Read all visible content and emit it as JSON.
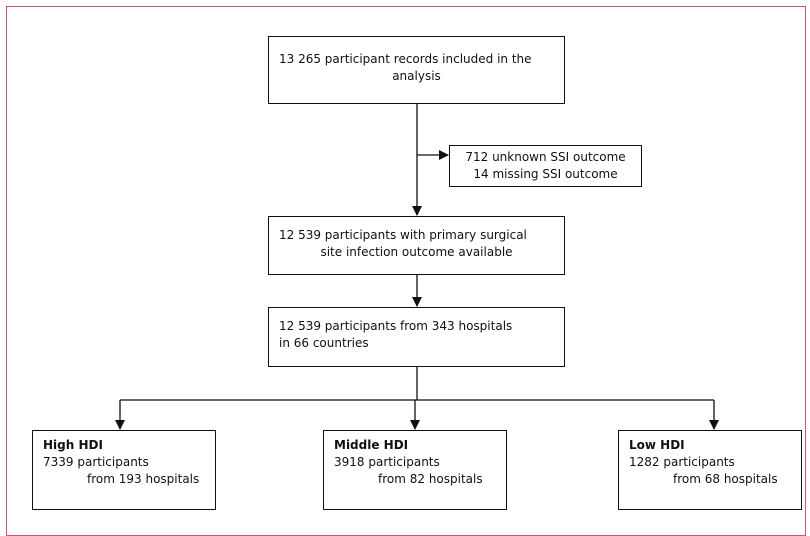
{
  "nodes": [
    {
      "lines": [
        "13 265 participant records included in the",
        "analysis"
      ]
    },
    {
      "lines": [
        "712 unknown SSI outcome",
        "14 missing SSI outcome"
      ]
    },
    {
      "lines": [
        "12 539 participants with primary surgical",
        "site infection outcome available"
      ]
    },
    {
      "lines": [
        "12 539 participants from 343 hospitals",
        "in 66 countries"
      ]
    },
    {
      "title": "High HDI",
      "lines": [
        "7339 participants",
        "from 193 hospitals"
      ]
    },
    {
      "title": "Middle HDI",
      "lines": [
        "3918 participants",
        "from 82 hospitals"
      ]
    },
    {
      "title": "Low HDI",
      "lines": [
        "1282 participants",
        "from 68 hospitals"
      ]
    }
  ]
}
